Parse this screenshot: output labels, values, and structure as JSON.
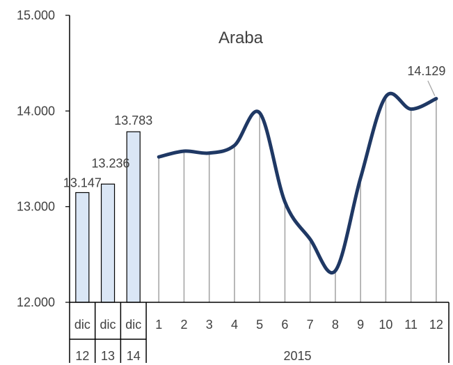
{
  "chart_data": {
    "type": "bar+line",
    "title": "Araba",
    "ylim": [
      12000,
      15000
    ],
    "yticks": [
      {
        "value": 12000,
        "label": "12.000"
      },
      {
        "value": 13000,
        "label": "13.000"
      },
      {
        "value": 14000,
        "label": "14.000"
      },
      {
        "value": 15000,
        "label": "15.000"
      }
    ],
    "grid": false,
    "bars": {
      "categories": [
        {
          "top": "dic",
          "bottom": "12"
        },
        {
          "top": "dic",
          "bottom": "13"
        },
        {
          "top": "dic",
          "bottom": "14"
        }
      ],
      "values": [
        13147,
        13236,
        13783
      ],
      "labels": [
        "13.147",
        "13.236",
        "13.783"
      ],
      "color": "#dae6f5",
      "edge_color": "#000000"
    },
    "line": {
      "categories": [
        "1",
        "2",
        "3",
        "4",
        "5",
        "6",
        "7",
        "8",
        "9",
        "10",
        "11",
        "12"
      ],
      "group_label": "2015",
      "values": [
        13520,
        13580,
        13560,
        13640,
        13980,
        13050,
        12660,
        12330,
        13300,
        14150,
        14020,
        14129
      ],
      "last_label": "14.129",
      "color": "#1f3864",
      "drop_line_color": "#a6a6a6"
    }
  }
}
